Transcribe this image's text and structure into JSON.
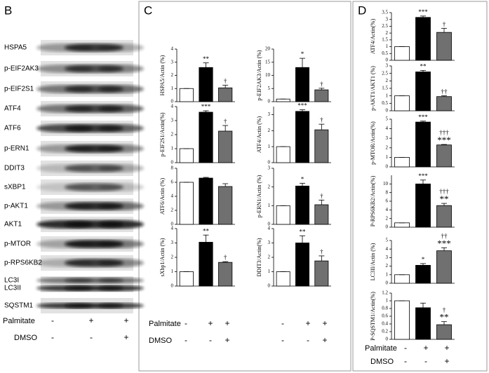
{
  "panel_labels": [
    "B",
    "C",
    "D"
  ],
  "blot": {
    "labels": [
      "HSPA5",
      "p-EIF2AK3",
      "p-EIF2S1",
      "ATF4",
      "ATF6",
      "p-ERN1",
      "DDIT3",
      "sXBP1",
      "p-AKT1",
      "AKT1",
      "p-MTOR",
      "p-RPS6KB2",
      "LC3I",
      "LC3II",
      "SQSTM1"
    ]
  },
  "conditions": [
    {
      "rows": [
        {
          "label": "Palmitate",
          "signs": [
            "-",
            "+",
            "+"
          ]
        },
        {
          "label": "DMSO",
          "signs": [
            "-",
            "-",
            "+"
          ]
        }
      ]
    },
    {
      "rows": [
        {
          "label": "Palmitate",
          "signs": [
            "-",
            "+",
            "+",
            "-",
            "+",
            "+"
          ]
        },
        {
          "label": "DMSO",
          "signs": [
            "-",
            "-",
            "+",
            "-",
            "-",
            "+"
          ]
        }
      ]
    },
    {
      "rows": [
        {
          "label": "Palmitate",
          "signs": [
            "-",
            "+",
            "+"
          ]
        },
        {
          "label": "DMSO",
          "signs": [
            "-",
            "-",
            "+"
          ]
        }
      ]
    }
  ],
  "chart_data": [
    {
      "type": "bar",
      "ylabel": "HSPA5/Actin (%)",
      "values": [
        1,
        2.6,
        1.05
      ],
      "errors": [
        0,
        0.35,
        0.2
      ],
      "colors": [
        "#ffffff",
        "#000000",
        "#707070"
      ],
      "ylim": [
        0,
        4
      ],
      "yticks": [
        0,
        1,
        2,
        3,
        4
      ],
      "annotations": [
        [],
        [
          "**"
        ],
        [
          "†"
        ]
      ]
    },
    {
      "type": "bar",
      "ylabel": "p-EIF2AK3/Actin (%)",
      "values": [
        1,
        13,
        4.5
      ],
      "errors": [
        0,
        3.5,
        0.6
      ],
      "colors": [
        "#ffffff",
        "#000000",
        "#707070"
      ],
      "ylim": [
        0,
        20
      ],
      "yticks": [
        0,
        5,
        10,
        15,
        20
      ],
      "annotations": [
        [],
        [
          "*"
        ],
        [
          "†"
        ]
      ]
    },
    {
      "type": "bar",
      "ylabel": "p-EIF2S1/Actin(%)",
      "values": [
        1,
        3.6,
        2.25
      ],
      "errors": [
        0,
        0.1,
        0.4
      ],
      "colors": [
        "#ffffff",
        "#000000",
        "#707070"
      ],
      "ylim": [
        0,
        4
      ],
      "yticks": [
        0,
        1,
        2,
        3,
        4
      ],
      "annotations": [
        [],
        [
          "***"
        ],
        [
          "†"
        ]
      ]
    },
    {
      "type": "bar",
      "ylabel": "ATF4/Actin (%)",
      "values": [
        1,
        3.2,
        2.05
      ],
      "errors": [
        0,
        0.1,
        0.35
      ],
      "colors": [
        "#ffffff",
        "#000000",
        "#707070"
      ],
      "ylim": [
        0,
        3.5
      ],
      "yticks": [
        0,
        1,
        2,
        3
      ],
      "annotations": [
        [],
        [
          "***"
        ],
        [
          "†"
        ]
      ]
    },
    {
      "type": "bar",
      "ylabel": "ATF6/Actin (%)",
      "values": [
        6,
        6.6,
        5.4
      ],
      "errors": [
        0,
        0.1,
        0.4
      ],
      "colors": [
        "#ffffff",
        "#000000",
        "#707070"
      ],
      "ylim": [
        0,
        8
      ],
      "yticks": [
        0,
        2,
        4,
        6,
        8
      ],
      "annotations": [
        [],
        [],
        []
      ]
    },
    {
      "type": "bar",
      "ylabel": "p-ERN1/Actin (%)",
      "values": [
        1,
        2.05,
        1.05
      ],
      "errors": [
        0,
        0.15,
        0.25
      ],
      "colors": [
        "#ffffff",
        "#000000",
        "#707070"
      ],
      "ylim": [
        0,
        3
      ],
      "yticks": [
        0,
        1,
        2,
        3
      ],
      "annotations": [
        [],
        [
          "*"
        ],
        [
          "†"
        ]
      ]
    },
    {
      "type": "bar",
      "ylabel": "sXbp1/Actin (%)",
      "values": [
        1,
        3.05,
        1.65
      ],
      "errors": [
        0,
        0.5,
        0.05
      ],
      "colors": [
        "#ffffff",
        "#000000",
        "#707070"
      ],
      "ylim": [
        0,
        4
      ],
      "yticks": [
        0,
        1,
        2,
        3,
        4
      ],
      "annotations": [
        [],
        [
          "**"
        ],
        [
          "†"
        ]
      ]
    },
    {
      "type": "bar",
      "ylabel": "DDIT3/Actin(%)",
      "values": [
        1,
        3,
        1.75
      ],
      "errors": [
        0,
        0.5,
        0.35
      ],
      "colors": [
        "#ffffff",
        "#000000",
        "#707070"
      ],
      "ylim": [
        0,
        4
      ],
      "yticks": [
        0,
        1,
        2,
        3,
        4
      ],
      "annotations": [
        [],
        [
          "**"
        ],
        [
          "†"
        ]
      ]
    },
    {
      "type": "bar",
      "ylabel": "ATF4/Actin(%)",
      "values": [
        1,
        3.15,
        2.05
      ],
      "errors": [
        0,
        0.1,
        0.3
      ],
      "colors": [
        "#ffffff",
        "#000000",
        "#707070"
      ],
      "ylim": [
        0,
        3.5
      ],
      "yticks": [
        0,
        0.5,
        1,
        1.5,
        2,
        2.5,
        3,
        3.5
      ],
      "annotations": [
        [],
        [
          "***"
        ],
        [
          "†"
        ]
      ]
    },
    {
      "type": "bar",
      "ylabel": "p-AKT1/AKT1 (%)",
      "values": [
        1,
        2.6,
        0.95
      ],
      "errors": [
        0,
        0.1,
        0.05
      ],
      "colors": [
        "#ffffff",
        "#000000",
        "#707070"
      ],
      "ylim": [
        0,
        3
      ],
      "yticks": [
        0,
        0.5,
        1,
        1.5,
        2,
        2.5,
        3
      ],
      "annotations": [
        [],
        [
          "**"
        ],
        [
          "††"
        ]
      ]
    },
    {
      "type": "bar",
      "ylabel": "p-MTOR/Actin(%)",
      "values": [
        1,
        4.7,
        2.3
      ],
      "errors": [
        0,
        0.1,
        0.05
      ],
      "colors": [
        "#ffffff",
        "#000000",
        "#707070"
      ],
      "ylim": [
        0,
        5
      ],
      "yticks": [
        0,
        1,
        2,
        3,
        4,
        5
      ],
      "annotations": [
        [],
        [
          "***"
        ],
        [
          "†††",
          "***"
        ]
      ]
    },
    {
      "type": "bar",
      "ylabel": "P-RPS6KB2/Actin(%)",
      "values": [
        1,
        10,
        5
      ],
      "errors": [
        0,
        0.9,
        0.5
      ],
      "colors": [
        "#ffffff",
        "#000000",
        "#707070"
      ],
      "ylim": [
        0,
        12
      ],
      "yticks": [
        0,
        2,
        4,
        6,
        8,
        10
      ],
      "annotations": [
        [],
        [
          "***"
        ],
        [
          "†††",
          "**"
        ]
      ]
    },
    {
      "type": "bar",
      "ylabel": "LC3II/Actin (%)",
      "values": [
        1,
        2.1,
        3.8
      ],
      "errors": [
        0,
        0.2,
        0.35
      ],
      "colors": [
        "#ffffff",
        "#000000",
        "#707070"
      ],
      "ylim": [
        0,
        5
      ],
      "yticks": [
        0,
        1,
        2,
        3,
        4,
        5
      ],
      "annotations": [
        [],
        [
          "*"
        ],
        [
          "††",
          "***"
        ]
      ]
    },
    {
      "type": "bar",
      "ylabel": "P-SQSTM1/Actin(%)",
      "values": [
        1,
        0.82,
        0.38
      ],
      "errors": [
        0,
        0.12,
        0.08
      ],
      "colors": [
        "#ffffff",
        "#000000",
        "#707070"
      ],
      "ylim": [
        0,
        1.2
      ],
      "yticks": [
        0,
        0.2,
        0.4,
        0.6,
        0.8,
        1,
        1.2
      ],
      "annotations": [
        [],
        [],
        [
          "†",
          "**"
        ]
      ]
    }
  ]
}
